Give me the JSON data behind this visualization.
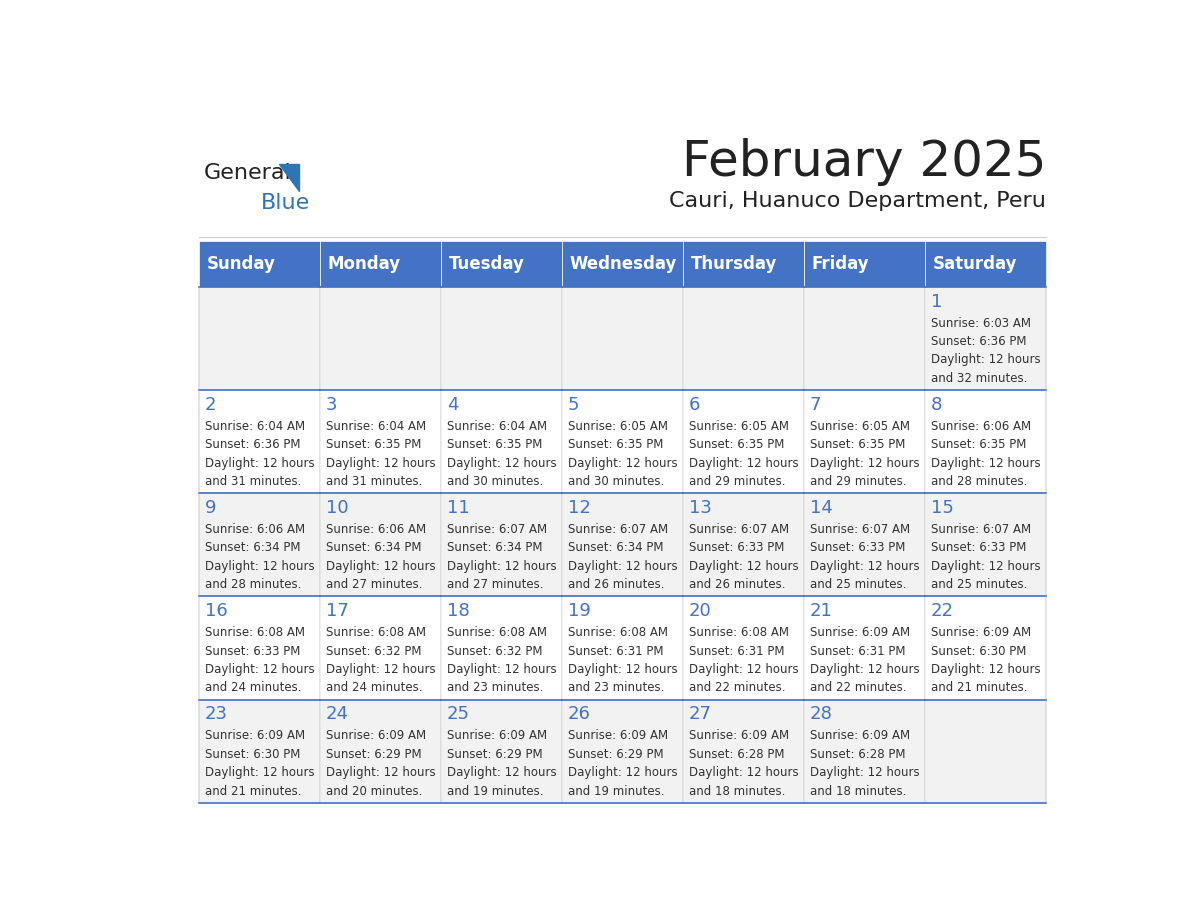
{
  "title": "February 2025",
  "subtitle": "Cauri, Huanuco Department, Peru",
  "header_bg": "#4472C4",
  "header_text_color": "#FFFFFF",
  "cell_bg_light": "#F2F2F2",
  "cell_bg_white": "#FFFFFF",
  "border_color": "#4472C4",
  "day_headers": [
    "Sunday",
    "Monday",
    "Tuesday",
    "Wednesday",
    "Thursday",
    "Friday",
    "Saturday"
  ],
  "title_color": "#222222",
  "subtitle_color": "#222222",
  "day_num_color": "#4472C4",
  "cell_text_color": "#333333",
  "logo_general_color": "#222222",
  "logo_blue_color": "#2E75B6",
  "calendar_data": [
    [
      null,
      null,
      null,
      null,
      null,
      null,
      {
        "day": 1,
        "sunrise": "6:03 AM",
        "sunset": "6:36 PM",
        "daylight": "12 hours\nand 32 minutes."
      }
    ],
    [
      {
        "day": 2,
        "sunrise": "6:04 AM",
        "sunset": "6:36 PM",
        "daylight": "12 hours\nand 31 minutes."
      },
      {
        "day": 3,
        "sunrise": "6:04 AM",
        "sunset": "6:35 PM",
        "daylight": "12 hours\nand 31 minutes."
      },
      {
        "day": 4,
        "sunrise": "6:04 AM",
        "sunset": "6:35 PM",
        "daylight": "12 hours\nand 30 minutes."
      },
      {
        "day": 5,
        "sunrise": "6:05 AM",
        "sunset": "6:35 PM",
        "daylight": "12 hours\nand 30 minutes."
      },
      {
        "day": 6,
        "sunrise": "6:05 AM",
        "sunset": "6:35 PM",
        "daylight": "12 hours\nand 29 minutes."
      },
      {
        "day": 7,
        "sunrise": "6:05 AM",
        "sunset": "6:35 PM",
        "daylight": "12 hours\nand 29 minutes."
      },
      {
        "day": 8,
        "sunrise": "6:06 AM",
        "sunset": "6:35 PM",
        "daylight": "12 hours\nand 28 minutes."
      }
    ],
    [
      {
        "day": 9,
        "sunrise": "6:06 AM",
        "sunset": "6:34 PM",
        "daylight": "12 hours\nand 28 minutes."
      },
      {
        "day": 10,
        "sunrise": "6:06 AM",
        "sunset": "6:34 PM",
        "daylight": "12 hours\nand 27 minutes."
      },
      {
        "day": 11,
        "sunrise": "6:07 AM",
        "sunset": "6:34 PM",
        "daylight": "12 hours\nand 27 minutes."
      },
      {
        "day": 12,
        "sunrise": "6:07 AM",
        "sunset": "6:34 PM",
        "daylight": "12 hours\nand 26 minutes."
      },
      {
        "day": 13,
        "sunrise": "6:07 AM",
        "sunset": "6:33 PM",
        "daylight": "12 hours\nand 26 minutes."
      },
      {
        "day": 14,
        "sunrise": "6:07 AM",
        "sunset": "6:33 PM",
        "daylight": "12 hours\nand 25 minutes."
      },
      {
        "day": 15,
        "sunrise": "6:07 AM",
        "sunset": "6:33 PM",
        "daylight": "12 hours\nand 25 minutes."
      }
    ],
    [
      {
        "day": 16,
        "sunrise": "6:08 AM",
        "sunset": "6:33 PM",
        "daylight": "12 hours\nand 24 minutes."
      },
      {
        "day": 17,
        "sunrise": "6:08 AM",
        "sunset": "6:32 PM",
        "daylight": "12 hours\nand 24 minutes."
      },
      {
        "day": 18,
        "sunrise": "6:08 AM",
        "sunset": "6:32 PM",
        "daylight": "12 hours\nand 23 minutes."
      },
      {
        "day": 19,
        "sunrise": "6:08 AM",
        "sunset": "6:31 PM",
        "daylight": "12 hours\nand 23 minutes."
      },
      {
        "day": 20,
        "sunrise": "6:08 AM",
        "sunset": "6:31 PM",
        "daylight": "12 hours\nand 22 minutes."
      },
      {
        "day": 21,
        "sunrise": "6:09 AM",
        "sunset": "6:31 PM",
        "daylight": "12 hours\nand 22 minutes."
      },
      {
        "day": 22,
        "sunrise": "6:09 AM",
        "sunset": "6:30 PM",
        "daylight": "12 hours\nand 21 minutes."
      }
    ],
    [
      {
        "day": 23,
        "sunrise": "6:09 AM",
        "sunset": "6:30 PM",
        "daylight": "12 hours\nand 21 minutes."
      },
      {
        "day": 24,
        "sunrise": "6:09 AM",
        "sunset": "6:29 PM",
        "daylight": "12 hours\nand 20 minutes."
      },
      {
        "day": 25,
        "sunrise": "6:09 AM",
        "sunset": "6:29 PM",
        "daylight": "12 hours\nand 19 minutes."
      },
      {
        "day": 26,
        "sunrise": "6:09 AM",
        "sunset": "6:29 PM",
        "daylight": "12 hours\nand 19 minutes."
      },
      {
        "day": 27,
        "sunrise": "6:09 AM",
        "sunset": "6:28 PM",
        "daylight": "12 hours\nand 18 minutes."
      },
      {
        "day": 28,
        "sunrise": "6:09 AM",
        "sunset": "6:28 PM",
        "daylight": "12 hours\nand 18 minutes."
      },
      null
    ]
  ]
}
